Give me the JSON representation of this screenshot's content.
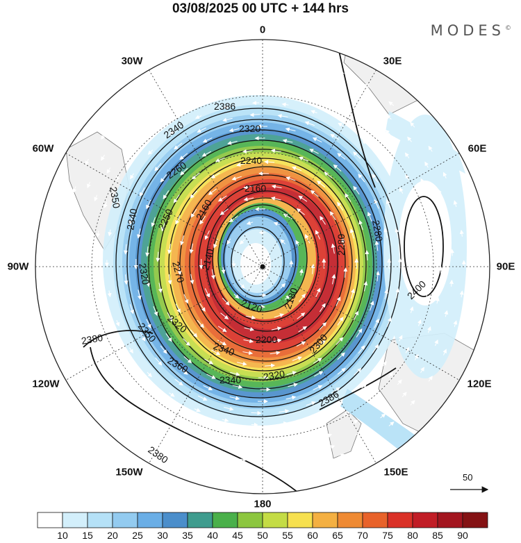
{
  "title": "03/08/2025  00 UTC  + 144 hrs",
  "brand": "MODES",
  "brand_mark": "©",
  "longitude_labels": [
    "0",
    "30E",
    "60E",
    "90E",
    "120E",
    "150E",
    "180",
    "150W",
    "120W",
    "90W",
    "60W",
    "30W"
  ],
  "contour_labels": [
    "2120",
    "2140",
    "2160",
    "2180",
    "2200",
    "2240",
    "2250",
    "2260",
    "2270",
    "2280",
    "2300",
    "2320",
    "2340",
    "2350",
    "2360",
    "2380",
    "2386",
    "2400"
  ],
  "reference_vector": {
    "value": "50"
  },
  "colorbar": {
    "tick_labels": [
      "10",
      "15",
      "20",
      "25",
      "30",
      "35",
      "40",
      "45",
      "50",
      "55",
      "60",
      "65",
      "70",
      "75",
      "80",
      "85",
      "90"
    ],
    "colors": [
      "#ffffff",
      "#d3effb",
      "#b5e1f7",
      "#93cbf0",
      "#6aaee6",
      "#4b8ecb",
      "#3f9c8e",
      "#4ab04a",
      "#8cc63f",
      "#c4dc45",
      "#f6e04f",
      "#f4b042",
      "#ef8a33",
      "#e8622a",
      "#da3127",
      "#c11d26",
      "#a3151f",
      "#841214"
    ]
  },
  "colors": {
    "land": "#f0f0f0",
    "contour": "#111111",
    "wind_vector": "#ffffff",
    "grid": "#333333"
  }
}
